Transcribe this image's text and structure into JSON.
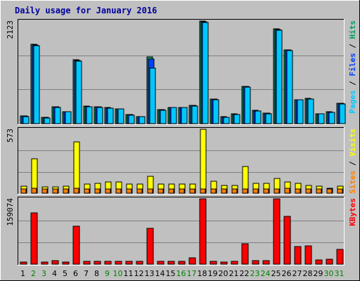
{
  "chart_data": {
    "type": "bar",
    "title": "Daily usage for January 2016",
    "days": [
      "1",
      "2",
      "3",
      "4",
      "5",
      "6",
      "7",
      "8",
      "9",
      "10",
      "11",
      "12",
      "13",
      "14",
      "15",
      "16",
      "17",
      "18",
      "19",
      "20",
      "21",
      "22",
      "23",
      "24",
      "25",
      "26",
      "27",
      "28",
      "29",
      "30",
      "31"
    ],
    "weekend_days": [
      "2",
      "3",
      "9",
      "10",
      "16",
      "17",
      "23",
      "24",
      "30",
      "31"
    ],
    "colors": {
      "background": "#c0c0c0",
      "frame": "#4f5d6e",
      "title": "#0000a0",
      "tick_normal": "#000000",
      "tick_weekend": "#008000",
      "hits": "#00a060",
      "files": "#0040ff",
      "pages": "#00c8ff",
      "visits": "#ffff00",
      "sites": "#ff8000",
      "kbytes": "#ff0000"
    },
    "panels": [
      {
        "id": "hits-files-pages",
        "max_label": "2123",
        "ymax": 2123,
        "label_parts": [
          {
            "text": "Pages",
            "color_key": "pages"
          },
          {
            "text": " / ",
            "color_key": "tick_normal"
          },
          {
            "text": "Files",
            "color_key": "files"
          },
          {
            "text": " / ",
            "color_key": "tick_normal"
          },
          {
            "text": "Hits",
            "color_key": "hits"
          }
        ],
        "series": [
          {
            "name": "Hits",
            "color_key": "hits",
            "values": [
              160,
              1640,
              130,
              350,
              250,
              1320,
              360,
              350,
              330,
              310,
              190,
              150,
              1380,
              290,
              340,
              340,
              380,
              2120,
              510,
              140,
              200,
              770,
              270,
              220,
              1960,
              1530,
              500,
              520,
              210,
              240,
              420
            ]
          },
          {
            "name": "Files",
            "color_key": "files",
            "values": [
              155,
              1630,
              125,
              345,
              245,
              1310,
              355,
              345,
              325,
              305,
              185,
              145,
              1340,
              285,
              335,
              335,
              375,
              2110,
              505,
              135,
              195,
              765,
              265,
              215,
              1950,
              1520,
              495,
              515,
              205,
              235,
              415
            ]
          },
          {
            "name": "Pages",
            "color_key": "pages",
            "values": [
              150,
              1620,
              120,
              340,
              240,
              1300,
              350,
              340,
              320,
              300,
              180,
              140,
              1150,
              280,
              330,
              330,
              370,
              2100,
              500,
              130,
              190,
              760,
              260,
              210,
              1940,
              1510,
              490,
              510,
              200,
              230,
              410
            ]
          }
        ]
      },
      {
        "id": "visits-sites",
        "max_label": "573",
        "ymax": 573,
        "label_parts": [
          {
            "text": "Sites",
            "color_key": "sites"
          },
          {
            "text": " / ",
            "color_key": "tick_normal"
          },
          {
            "text": "Visits",
            "color_key": "visits"
          }
        ],
        "series": [
          {
            "name": "Visits",
            "color_key": "visits",
            "values": [
              65,
              310,
              55,
              55,
              65,
              460,
              80,
              90,
              100,
              100,
              80,
              80,
              150,
              80,
              80,
              80,
              80,
              573,
              110,
              70,
              70,
              240,
              90,
              90,
              135,
              100,
              90,
              70,
              60,
              45,
              60
            ]
          },
          {
            "name": "Sites",
            "color_key": "sites",
            "values": [
              40,
              45,
              40,
              40,
              40,
              45,
              40,
              40,
              40,
              40,
              40,
              40,
              40,
              40,
              40,
              40,
              40,
              40,
              40,
              40,
              40,
              40,
              40,
              40,
              40,
              45,
              40,
              40,
              40,
              35,
              35
            ]
          }
        ]
      },
      {
        "id": "kbytes",
        "max_label": "159074",
        "ymax": 159074,
        "label_parts": [
          {
            "text": "KBytes",
            "color_key": "kbytes"
          }
        ],
        "series": [
          {
            "name": "KBytes",
            "color_key": "kbytes",
            "values": [
              5000,
              125000,
              5000,
              8000,
              5000,
              93000,
              6000,
              6000,
              6000,
              6000,
              6000,
              6000,
              87000,
              6000,
              6000,
              6000,
              16000,
              159074,
              6000,
              5000,
              6000,
              50000,
              9000,
              8000,
              159074,
              117000,
              43000,
              45000,
              10000,
              12000,
              36000
            ]
          }
        ]
      }
    ]
  }
}
